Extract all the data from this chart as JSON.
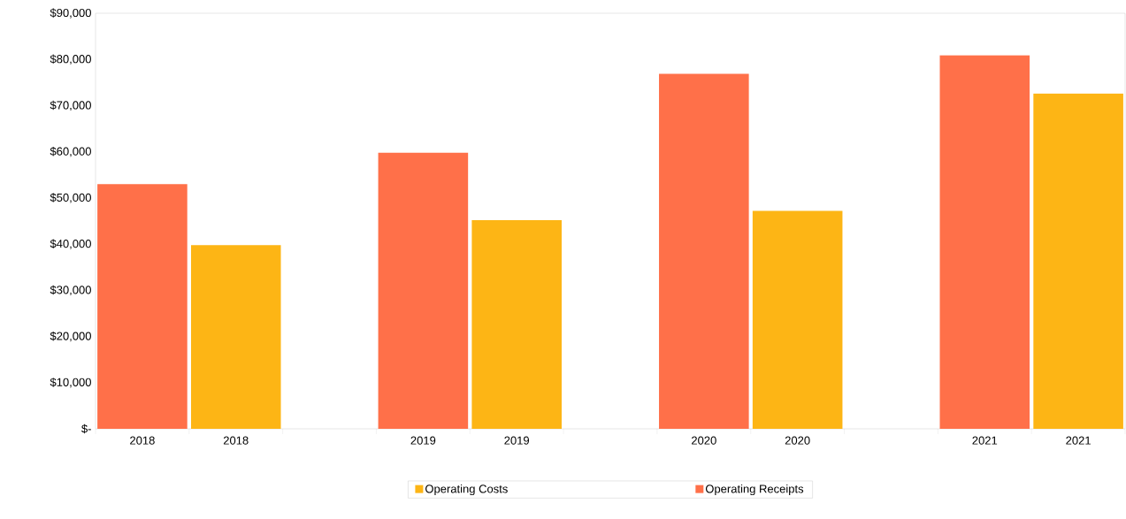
{
  "chart_data": {
    "type": "bar",
    "categories": [
      "2018",
      "2018",
      null,
      "2019",
      "2019",
      null,
      "2020",
      "2020",
      null,
      "2021",
      "2021"
    ],
    "series": [
      {
        "name": "Operating Costs",
        "color": "#fdb515",
        "values": [
          null,
          39800,
          null,
          null,
          45200,
          null,
          null,
          47200,
          null,
          null,
          72600
        ]
      },
      {
        "name": "Operating Receipts",
        "color": "#ff7049",
        "values": [
          53000,
          null,
          null,
          59800,
          null,
          null,
          76900,
          null,
          null,
          80900,
          null
        ]
      }
    ],
    "ylim": [
      0,
      90000
    ],
    "yticks": [
      {
        "value": 0,
        "label": "$-"
      },
      {
        "value": 10000,
        "label": "$10,000"
      },
      {
        "value": 20000,
        "label": "$20,000"
      },
      {
        "value": 30000,
        "label": "$30,000"
      },
      {
        "value": 40000,
        "label": "$40,000"
      },
      {
        "value": 50000,
        "label": "$50,000"
      },
      {
        "value": 60000,
        "label": "$60,000"
      },
      {
        "value": 70000,
        "label": "$70,000"
      },
      {
        "value": 80000,
        "label": "$80,000"
      },
      {
        "value": 90000,
        "label": "$90,000"
      }
    ],
    "grid": false,
    "legend": "bottom"
  }
}
